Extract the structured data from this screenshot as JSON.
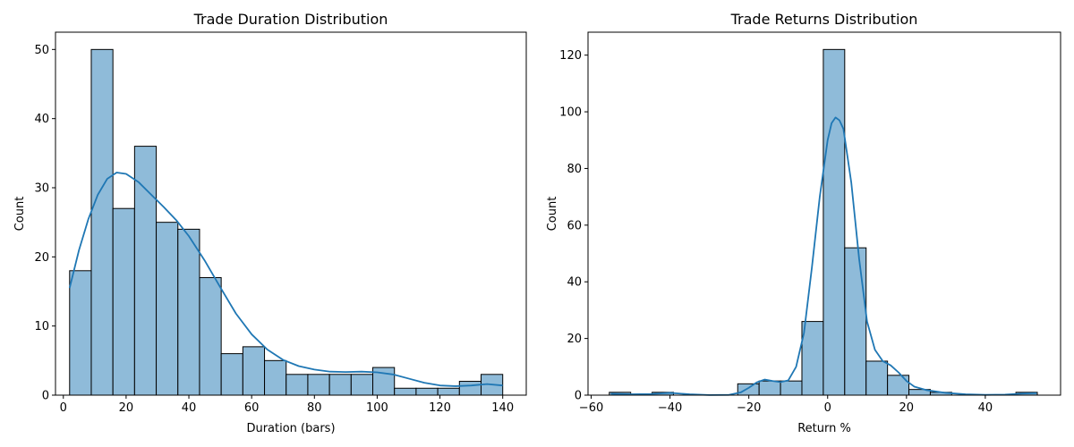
{
  "chart_data": [
    {
      "type": "bar",
      "title": "Trade Duration Distribution",
      "xlabel": "Duration (bars)",
      "ylabel": "Count",
      "xlim": [
        -2.5,
        147.5
      ],
      "ylim": [
        0,
        52.5
      ],
      "xticks": [
        0,
        20,
        40,
        60,
        80,
        100,
        120,
        140
      ],
      "yticks": [
        0,
        10,
        20,
        30,
        40,
        50
      ],
      "bin_start": 2,
      "bin_width": 6.9,
      "counts": [
        18,
        50,
        27,
        36,
        25,
        24,
        17,
        6,
        7,
        5,
        3,
        3,
        3,
        3,
        4,
        1,
        1,
        1,
        2,
        3
      ],
      "kde": {
        "x": [
          2,
          5,
          8,
          11,
          14,
          17,
          20,
          24,
          28,
          32,
          36,
          40,
          45,
          50,
          55,
          60,
          65,
          70,
          75,
          80,
          85,
          90,
          95,
          100,
          105,
          110,
          115,
          120,
          125,
          130,
          135,
          140
        ],
        "y": [
          15.5,
          21,
          25.5,
          29,
          31.3,
          32.2,
          32,
          30.8,
          29,
          27.2,
          25.3,
          23,
          19.5,
          15.6,
          11.8,
          8.8,
          6.6,
          5.1,
          4.2,
          3.7,
          3.4,
          3.35,
          3.4,
          3.3,
          3.0,
          2.4,
          1.8,
          1.4,
          1.3,
          1.4,
          1.6,
          1.4
        ]
      },
      "bar_fill": "#8fbbd9",
      "bar_edge": "#000000",
      "line_color": "#1f77b4",
      "grid": false
    },
    {
      "type": "bar",
      "title": "Trade Returns Distribution",
      "xlabel": "Return %",
      "ylabel": "Count",
      "xlim": [
        -60.8,
        59.1
      ],
      "ylim": [
        0,
        128.1
      ],
      "xticks": [
        -60,
        -40,
        -20,
        0,
        20,
        40
      ],
      "yticks": [
        0,
        20,
        40,
        60,
        80,
        100,
        120
      ],
      "bin_start": -55.4,
      "bin_width": 5.43,
      "counts": [
        1,
        0,
        1,
        0,
        0,
        0,
        4,
        5,
        5,
        26,
        122,
        52,
        12,
        7,
        2,
        1,
        0,
        0,
        0,
        1
      ],
      "kde": {
        "x": [
          -55,
          -50,
          -45,
          -40,
          -35,
          -30,
          -25,
          -22,
          -20,
          -18,
          -16,
          -14,
          -12,
          -10,
          -8,
          -6,
          -4,
          -2,
          0,
          1,
          2,
          3,
          4,
          6,
          8,
          10,
          12,
          14,
          16,
          18,
          20,
          22,
          25,
          30,
          35,
          40,
          45,
          50,
          53
        ],
        "y": [
          0.5,
          0.3,
          0.4,
          0.8,
          0.3,
          0.05,
          0.1,
          1.0,
          2.6,
          4.5,
          5.5,
          5.0,
          4.6,
          5.2,
          10,
          22,
          45,
          70,
          90,
          96,
          98,
          97,
          94,
          75,
          48,
          26,
          16,
          12,
          10.5,
          8,
          5,
          3,
          1.8,
          0.8,
          0.3,
          0.1,
          0.2,
          0.6,
          0.7
        ]
      },
      "bar_fill": "#8fbbd9",
      "bar_edge": "#000000",
      "line_color": "#1f77b4",
      "grid": false
    }
  ]
}
